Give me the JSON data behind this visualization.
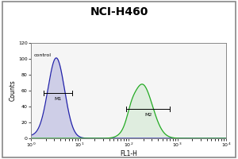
{
  "title": "NCI-H460",
  "title_fontsize": 10,
  "title_fontweight": "bold",
  "xlabel": "FL1-H",
  "ylabel": "Counts",
  "xlim": [
    1.0,
    10000.0
  ],
  "ylim": [
    0,
    120
  ],
  "yticks": [
    0,
    20,
    40,
    60,
    80,
    100,
    120
  ],
  "background_color": "#ffffff",
  "plot_bg_color": "#f5f5f5",
  "control_color": "#2222aa",
  "sample_color": "#22aa22",
  "control_label": "control",
  "m1_label": "M1",
  "m2_label": "M2",
  "ctrl_log_mean": 0.52,
  "ctrl_log_std": 0.17,
  "ctrl_peak_y": 100,
  "samp_log_mean": 2.28,
  "samp_log_std": 0.21,
  "samp_peak_y": 68,
  "m1_x_start": 1.8,
  "m1_x_end": 7.0,
  "m1_y": 57,
  "m2_x_start": 90,
  "m2_x_end": 700,
  "m2_y": 37,
  "outer_border_color": "#888888",
  "inner_border_color": "#888888"
}
